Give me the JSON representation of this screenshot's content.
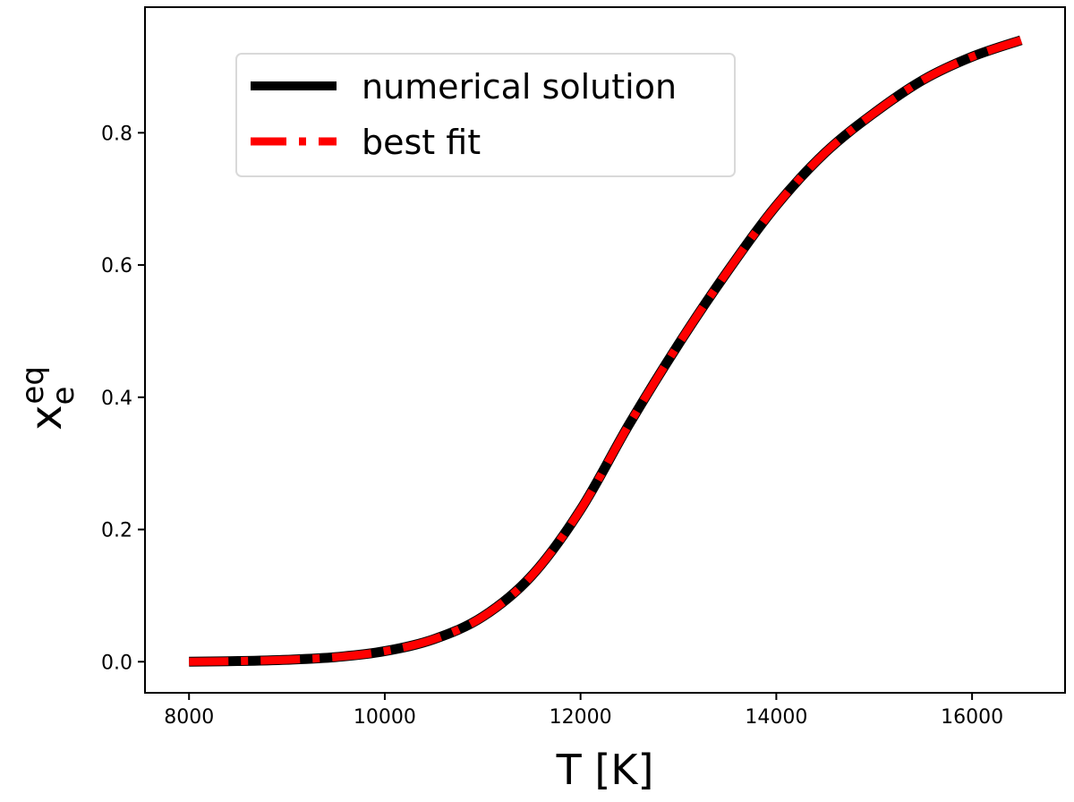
{
  "chart_data": {
    "type": "line",
    "title": "",
    "xlabel": "T [K]",
    "ylabel": {
      "base": "x",
      "subscript": "e",
      "superscript": "eq"
    },
    "xlim": [
      7550,
      16950
    ],
    "ylim": [
      -0.047,
      0.99
    ],
    "xticks": [
      8000,
      10000,
      12000,
      14000,
      16000
    ],
    "yticks": [
      0.0,
      0.2,
      0.4,
      0.6,
      0.8
    ],
    "ytick_labels": [
      "0.0",
      "0.2",
      "0.4",
      "0.6",
      "0.8"
    ],
    "legend_position": "upper-left",
    "grid": false,
    "series": [
      {
        "name": "numerical solution",
        "color": "#000000",
        "style": "solid",
        "x": [
          8000,
          8500,
          9000,
          9500,
          10000,
          10500,
          11000,
          11500,
          12000,
          12500,
          13000,
          13500,
          14000,
          14500,
          15000,
          15500,
          16000,
          16500
        ],
        "y": [
          0.0,
          0.001,
          0.003,
          0.007,
          0.016,
          0.034,
          0.068,
          0.13,
          0.23,
          0.36,
          0.48,
          0.59,
          0.69,
          0.77,
          0.83,
          0.88,
          0.915,
          0.94
        ]
      },
      {
        "name": "best fit",
        "color": "#ff0000",
        "style": "dashdot",
        "x": [
          8000,
          8500,
          9000,
          9500,
          10000,
          10500,
          11000,
          11500,
          12000,
          12500,
          13000,
          13500,
          14000,
          14500,
          15000,
          15500,
          16000,
          16500
        ],
        "y": [
          0.0,
          0.001,
          0.003,
          0.007,
          0.016,
          0.034,
          0.068,
          0.13,
          0.23,
          0.36,
          0.48,
          0.59,
          0.69,
          0.77,
          0.83,
          0.88,
          0.915,
          0.94
        ]
      }
    ]
  }
}
